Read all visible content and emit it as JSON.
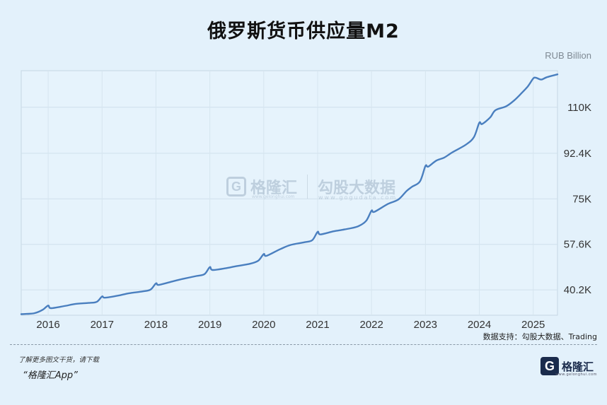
{
  "header": {
    "title": "俄罗斯货币供应量M2",
    "unit": "RUB Billion"
  },
  "chart_data": {
    "type": "line",
    "title": "俄罗斯货币供应量M2",
    "ylabel": "RUB Billion",
    "xlabel": "",
    "xlim": [
      2015.5,
      2025.45
    ],
    "ylim": [
      30500,
      124000
    ],
    "yticks": [
      40200,
      57600,
      75000,
      92400,
      110000
    ],
    "ytick_labels": [
      "40.2K",
      "57.6K",
      "75K",
      "92.4K",
      "110K"
    ],
    "xticks": [
      2016,
      2017,
      2018,
      2019,
      2020,
      2021,
      2022,
      2023,
      2024,
      2025
    ],
    "xtick_labels": [
      "2016",
      "2017",
      "2018",
      "2019",
      "2020",
      "2021",
      "2022",
      "2023",
      "2024",
      "2025"
    ],
    "grid": true,
    "series": [
      {
        "name": "",
        "color": "#4a7fbf",
        "points": [
          [
            2015.5,
            30900
          ],
          [
            2015.6,
            31000
          ],
          [
            2015.75,
            31300
          ],
          [
            2015.9,
            32600
          ],
          [
            2016.0,
            34200
          ],
          [
            2016.05,
            33200
          ],
          [
            2016.3,
            34000
          ],
          [
            2016.5,
            34800
          ],
          [
            2016.75,
            35200
          ],
          [
            2016.9,
            35600
          ],
          [
            2017.0,
            37700
          ],
          [
            2017.05,
            37200
          ],
          [
            2017.3,
            38000
          ],
          [
            2017.5,
            38900
          ],
          [
            2017.75,
            39600
          ],
          [
            2017.9,
            40300
          ],
          [
            2018.0,
            42700
          ],
          [
            2018.05,
            42100
          ],
          [
            2018.3,
            43400
          ],
          [
            2018.5,
            44400
          ],
          [
            2018.75,
            45500
          ],
          [
            2018.9,
            46200
          ],
          [
            2019.0,
            48900
          ],
          [
            2019.05,
            47800
          ],
          [
            2019.3,
            48500
          ],
          [
            2019.5,
            49300
          ],
          [
            2019.75,
            50200
          ],
          [
            2019.9,
            51400
          ],
          [
            2020.0,
            53900
          ],
          [
            2020.05,
            53200
          ],
          [
            2020.3,
            55700
          ],
          [
            2020.5,
            57400
          ],
          [
            2020.75,
            58400
          ],
          [
            2020.9,
            59200
          ],
          [
            2021.0,
            62400
          ],
          [
            2021.05,
            61400
          ],
          [
            2021.3,
            62600
          ],
          [
            2021.5,
            63300
          ],
          [
            2021.75,
            64500
          ],
          [
            2021.9,
            66600
          ],
          [
            2022.0,
            70500
          ],
          [
            2022.05,
            70000
          ],
          [
            2022.3,
            73000
          ],
          [
            2022.5,
            74800
          ],
          [
            2022.65,
            78000
          ],
          [
            2022.75,
            79600
          ],
          [
            2022.9,
            81700
          ],
          [
            2023.0,
            87600
          ],
          [
            2023.05,
            87300
          ],
          [
            2023.2,
            89600
          ],
          [
            2023.35,
            90800
          ],
          [
            2023.5,
            92800
          ],
          [
            2023.75,
            95700
          ],
          [
            2023.9,
            98600
          ],
          [
            2024.0,
            104100
          ],
          [
            2024.05,
            103600
          ],
          [
            2024.2,
            106100
          ],
          [
            2024.3,
            108900
          ],
          [
            2024.5,
            110400
          ],
          [
            2024.65,
            112700
          ],
          [
            2024.75,
            114700
          ],
          [
            2024.9,
            118000
          ],
          [
            2025.0,
            121000
          ],
          [
            2025.05,
            121300
          ],
          [
            2025.15,
            120600
          ],
          [
            2025.25,
            121500
          ],
          [
            2025.45,
            122600
          ]
        ]
      }
    ]
  },
  "source": "数据支持：勾股大数据、Trading",
  "footer": {
    "note": "了解更多图文干货，请下载",
    "app": "“格隆汇App”"
  },
  "brand": {
    "logo_letter": "G",
    "name": "格隆汇",
    "url": "www.gelonghui.com"
  },
  "watermark": {
    "logo_letter": "G",
    "name1": "格隆汇",
    "name2": "勾股大数据",
    "url1": "www.gelonghui.com",
    "url2": "www.gogudata.com"
  }
}
